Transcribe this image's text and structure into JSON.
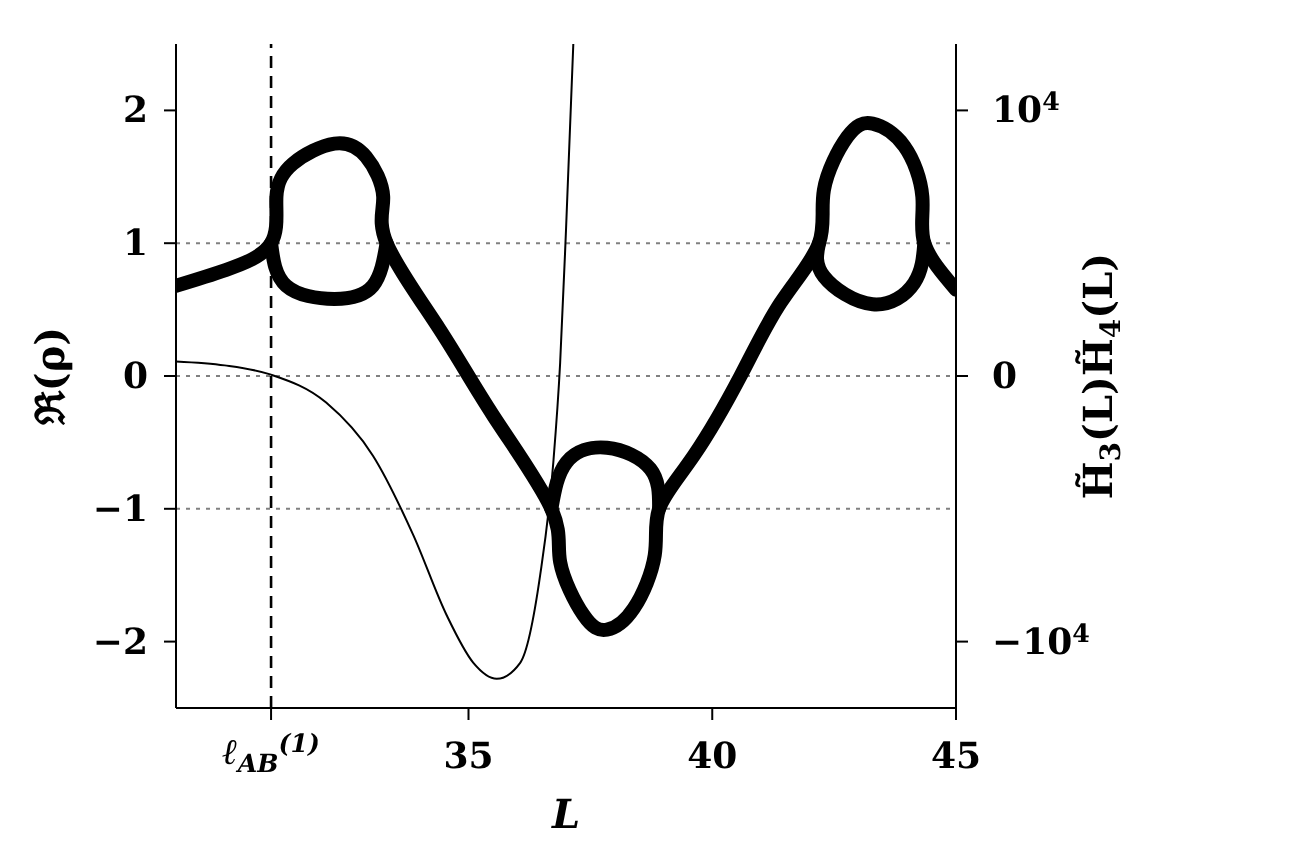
{
  "chart_data": {
    "type": "line",
    "xlabel": "L",
    "ylabel": "ℜ(ρ)",
    "y2label": "H̃$_{3}$(L)H̃$_{4}$(L)",
    "xlim": [
      29,
      45
    ],
    "xticks": [
      {
        "value": 30.95,
        "label": null
      },
      35,
      40,
      45
    ],
    "ylim": [
      -2.5,
      2.5
    ],
    "yticks": [
      -2,
      -1,
      0,
      1,
      2
    ],
    "y2lim": [
      -12500,
      12500
    ],
    "y2ticks": [
      {
        "value": -10000,
        "label": "−10$^{4}$"
      },
      0,
      {
        "value": 10000,
        "label": "10$^{4}$"
      }
    ],
    "series": [
      {
        "color": "#000000",
        "x": [
          29,
          30.03,
          30.95,
          31.06,
          31.4,
          32.25,
          32.9,
          33.25,
          33.32,
          34.41,
          35.51,
          36.7,
          36.88,
          37.36,
          37.84,
          38.39,
          38.82,
          38.91,
          39.62,
          40.58,
          41.4,
          42.19,
          42.29,
          42.77,
          43.29,
          43.94,
          44.31,
          44.35,
          45
        ],
        "values": [
          0.68,
          0.8,
          1,
          1.35,
          1.6,
          1.75,
          1.65,
          1.35,
          1,
          0.35,
          -0.3,
          -1,
          -1.4,
          -1.8,
          -1.91,
          -1.75,
          -1.35,
          -1,
          -0.6,
          0,
          0.55,
          1,
          1.4,
          1.8,
          1.9,
          1.73,
          1.35,
          1,
          0.65
        ]
      },
      {
        "color": "#000000",
        "x": [
          30.95,
          31.26,
          32.25,
          33.04,
          33.32,
          35,
          36.7,
          37.01,
          37.84,
          38.73,
          38.91,
          40.5,
          42.19,
          42.29,
          43.29,
          44.14,
          44.35
        ],
        "values": [
          1,
          0.68,
          0.58,
          0.68,
          1,
          null,
          -1,
          -0.65,
          -0.54,
          -0.7,
          -1,
          null,
          1,
          0.75,
          0.54,
          0.7,
          1
        ]
      },
      {
        "color": "#000000",
        "axis": "y2",
        "x": [
          29,
          30,
          30.95,
          32.08,
          33.04,
          33.87,
          34.55,
          35.1,
          35.58,
          36.06,
          36.47,
          36.74,
          36.88,
          37,
          37.15
        ],
        "values": [
          550,
          400,
          50,
          -1000,
          -3000,
          -6000,
          -9000,
          -10800,
          -11400,
          -10800,
          -7500,
          -3250,
          500,
          5500,
          12500
        ]
      }
    ],
    "ref_lines": [
      {
        "axis": "y",
        "value": 1,
        "label": null,
        "color": "#808080",
        "line_style": "dotted"
      },
      {
        "axis": "y",
        "value": 0,
        "label": null,
        "color": "#808080",
        "line_style": "dotted"
      },
      {
        "axis": "y",
        "value": -1,
        "label": null,
        "color": "#808080",
        "line_style": "dotted"
      },
      {
        "axis": "x",
        "value": 30.95,
        "label": "ℓ$_{AB}$$^{(1)}$",
        "color": "#000000",
        "line_style": "dashed"
      }
    ],
    "grid": false,
    "legend": false,
    "marker": "none",
    "line_style": "solid"
  }
}
